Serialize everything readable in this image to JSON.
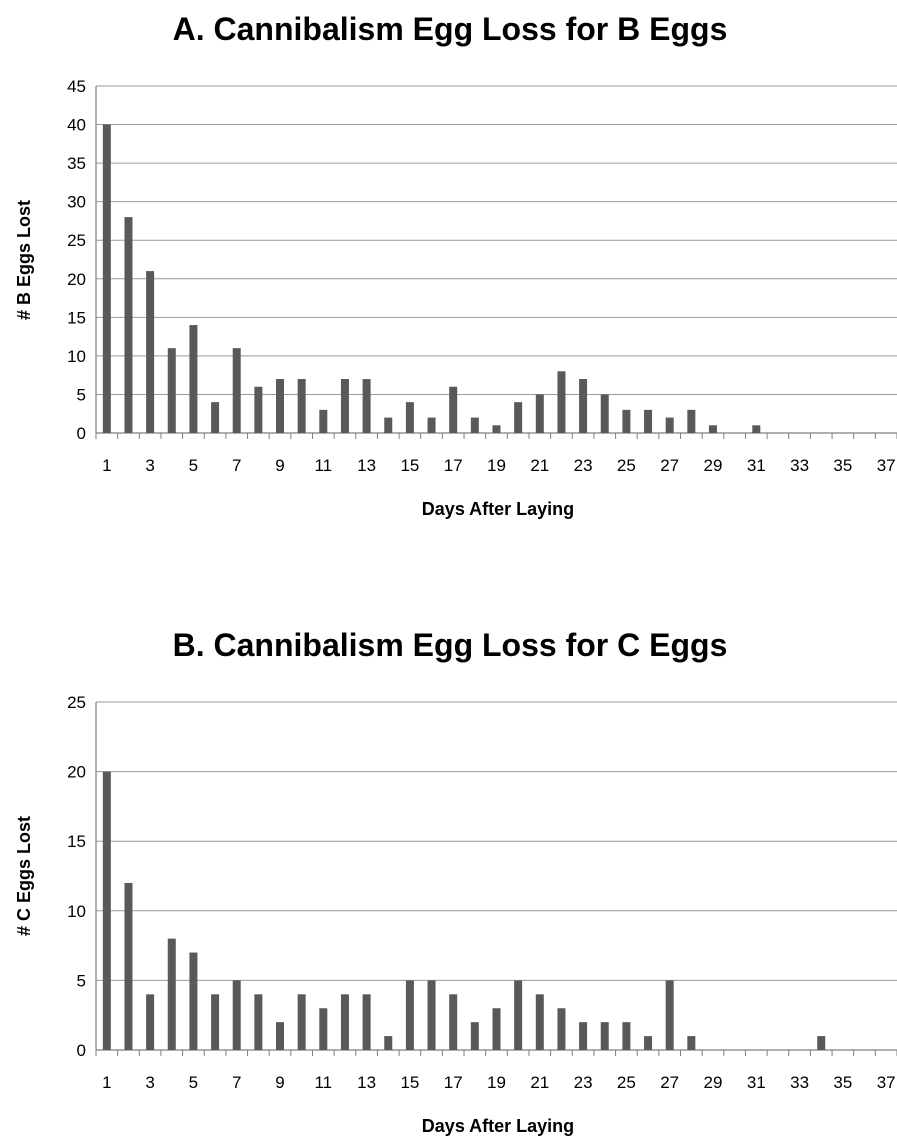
{
  "chart_data": [
    {
      "type": "bar",
      "title": "A. Cannibalism Egg Loss for B Eggs",
      "xlabel": "Days After Laying",
      "ylabel": "# B Eggs Lost",
      "ylim": [
        0,
        45
      ],
      "ytick_step": 5,
      "grid": "horizontal",
      "color": "#595959",
      "categories": [
        "1",
        "2",
        "3",
        "4",
        "5",
        "6",
        "7",
        "8",
        "9",
        "10",
        "11",
        "12",
        "13",
        "14",
        "15",
        "16",
        "17",
        "18",
        "19",
        "20",
        "21",
        "22",
        "23",
        "24",
        "25",
        "26",
        "27",
        "28",
        "29",
        "30",
        "31",
        "32",
        "33",
        "34",
        "35",
        "36",
        "37"
      ],
      "values": [
        40,
        28,
        21,
        11,
        14,
        4,
        11,
        6,
        7,
        7,
        3,
        7,
        7,
        2,
        4,
        2,
        6,
        2,
        1,
        4,
        5,
        8,
        7,
        5,
        3,
        3,
        2,
        3,
        1,
        0,
        1,
        0,
        0,
        0,
        0,
        0,
        0
      ]
    },
    {
      "type": "bar",
      "title": "B. Cannibalism Egg Loss for C Eggs",
      "xlabel": "Days After Laying",
      "ylabel": "# C Eggs Lost",
      "ylim": [
        0,
        25
      ],
      "ytick_step": 5,
      "grid": "horizontal",
      "color": "#595959",
      "categories": [
        "1",
        "2",
        "3",
        "4",
        "5",
        "6",
        "7",
        "8",
        "9",
        "10",
        "11",
        "12",
        "13",
        "14",
        "15",
        "16",
        "17",
        "18",
        "19",
        "20",
        "21",
        "22",
        "23",
        "24",
        "25",
        "26",
        "27",
        "28",
        "29",
        "30",
        "31",
        "32",
        "33",
        "34",
        "35",
        "36",
        "37"
      ],
      "values": [
        20,
        12,
        4,
        8,
        7,
        4,
        5,
        4,
        2,
        4,
        3,
        4,
        4,
        1,
        5,
        5,
        4,
        2,
        3,
        5,
        4,
        3,
        2,
        2,
        2,
        1,
        5,
        1,
        0,
        0,
        0,
        0,
        0,
        1,
        0,
        0,
        0
      ]
    }
  ]
}
